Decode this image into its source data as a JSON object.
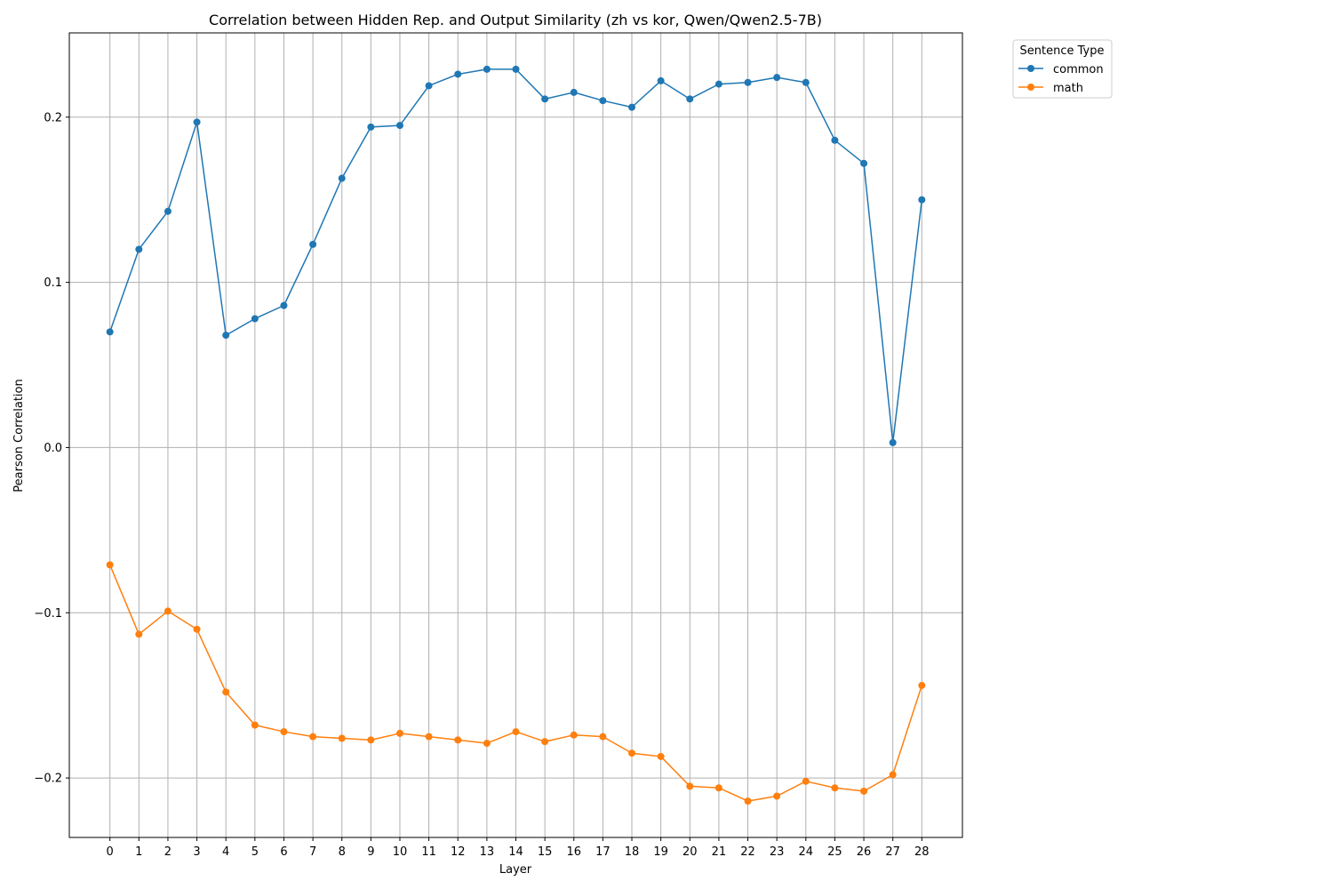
{
  "chart_data": {
    "type": "line",
    "title": "Correlation between Hidden Rep. and Output Similarity (zh vs kor, Qwen/Qwen2.5-7B)",
    "xlabel": "Layer",
    "ylabel": "Pearson Correlation",
    "x": [
      0,
      1,
      2,
      3,
      4,
      5,
      6,
      7,
      8,
      9,
      10,
      11,
      12,
      13,
      14,
      15,
      16,
      17,
      18,
      19,
      20,
      21,
      22,
      23,
      24,
      25,
      26,
      27,
      28
    ],
    "xlim": [
      -1.4,
      29.4
    ],
    "ylim": [
      -0.236,
      0.251
    ],
    "yticks": [
      -0.2,
      -0.1,
      0.0,
      0.1,
      0.2
    ],
    "ytick_labels": [
      "−0.2",
      "−0.1",
      "0.0",
      "0.1",
      "0.2"
    ],
    "grid": true,
    "legend": {
      "title": "Sentence Type",
      "placement": "outside-top-right"
    },
    "series": [
      {
        "name": "common",
        "color": "#1f77b4",
        "values": [
          0.07,
          0.12,
          0.143,
          0.197,
          0.068,
          0.078,
          0.086,
          0.123,
          0.163,
          0.194,
          0.195,
          0.219,
          0.226,
          0.229,
          0.229,
          0.211,
          0.215,
          0.21,
          0.206,
          0.222,
          0.211,
          0.22,
          0.221,
          0.224,
          0.221,
          0.186,
          0.172,
          0.003,
          0.15
        ]
      },
      {
        "name": "math",
        "color": "#ff7f0e",
        "values": [
          -0.071,
          -0.113,
          -0.099,
          -0.11,
          -0.148,
          -0.168,
          -0.172,
          -0.175,
          -0.176,
          -0.177,
          -0.173,
          -0.175,
          -0.177,
          -0.179,
          -0.172,
          -0.178,
          -0.174,
          -0.175,
          -0.185,
          -0.187,
          -0.205,
          -0.206,
          -0.214,
          -0.211,
          -0.202,
          -0.206,
          -0.208,
          -0.198,
          -0.144
        ]
      }
    ]
  }
}
